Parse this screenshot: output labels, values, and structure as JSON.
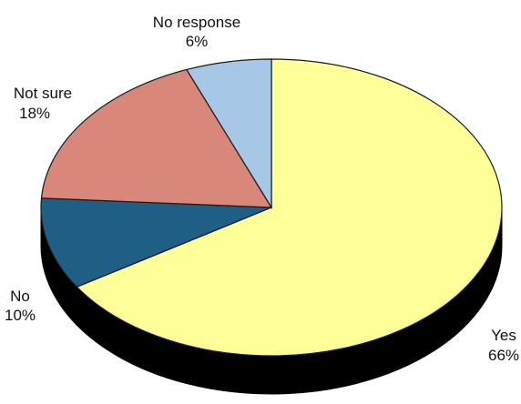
{
  "chart_data": {
    "type": "pie",
    "style": "3d",
    "title": "",
    "slices": [
      {
        "label": "Yes",
        "value": 66,
        "percent_label": "66%",
        "color": "#FFFF99"
      },
      {
        "label": "No",
        "value": 10,
        "percent_label": "10%",
        "color": "#1F5F86"
      },
      {
        "label": "Not sure",
        "value": 18,
        "percent_label": "18%",
        "color": "#D9877A"
      },
      {
        "label": "No response",
        "value": 6,
        "percent_label": "6%",
        "color": "#A6C8E6"
      }
    ],
    "start": "12 o'clock",
    "direction": "clockwise",
    "side_color": "#000000",
    "legend": "none",
    "labels": "outside"
  }
}
